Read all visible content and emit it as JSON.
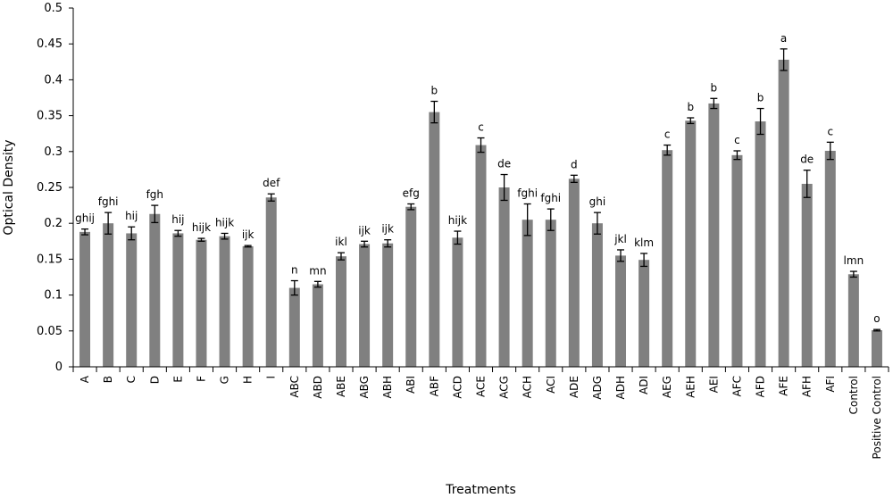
{
  "chart_data": {
    "type": "bar",
    "title": "",
    "xlabel": "Treatments",
    "ylabel": "Optical Density",
    "ylim": [
      0,
      0.5
    ],
    "yticks": [
      "0",
      "0.05",
      "0.1",
      "0.15",
      "0.2",
      "0.25",
      "0.3",
      "0.35",
      "0.4",
      "0.45",
      "0.5"
    ],
    "grid": false,
    "legend": "none",
    "bar_color": "#808080",
    "categories": [
      "A",
      "B",
      "C",
      "D",
      "E",
      "F",
      "G",
      "H",
      "I",
      "ABC",
      "ABD",
      "ABE",
      "ABG",
      "ABH",
      "ABI",
      "ABF",
      "ACD",
      "ACE",
      "ACG",
      "ACH",
      "ACI",
      "ADE",
      "ADG",
      "ADH",
      "ADI",
      "AEG",
      "AEH",
      "AEI",
      "AFC",
      "AFD",
      "AFE",
      "AFH",
      "AFI",
      "Control",
      "Positive Control"
    ],
    "values": [
      0.188,
      0.2,
      0.186,
      0.213,
      0.186,
      0.177,
      0.182,
      0.168,
      0.236,
      0.11,
      0.115,
      0.154,
      0.171,
      0.172,
      0.223,
      0.355,
      0.18,
      0.309,
      0.25,
      0.205,
      0.205,
      0.262,
      0.2,
      0.155,
      0.149,
      0.302,
      0.343,
      0.367,
      0.295,
      0.342,
      0.428,
      0.255,
      0.301,
      0.129,
      0.051
    ],
    "errors": [
      0.004,
      0.015,
      0.009,
      0.012,
      0.004,
      0.002,
      0.004,
      0.001,
      0.005,
      0.01,
      0.004,
      0.005,
      0.004,
      0.005,
      0.004,
      0.015,
      0.009,
      0.01,
      0.018,
      0.022,
      0.015,
      0.005,
      0.015,
      0.008,
      0.009,
      0.007,
      0.004,
      0.007,
      0.006,
      0.018,
      0.015,
      0.019,
      0.012,
      0.004,
      0.001
    ],
    "significance": [
      "ghij",
      "fghi",
      "hij",
      "fgh",
      "hij",
      "hijk",
      "hijk",
      "ijk",
      "def",
      "n",
      "mn",
      "ikl",
      "ijk",
      "ijk",
      "efg",
      "b",
      "hijk",
      "c",
      "de",
      "fghi",
      "fghi",
      "d",
      "ghi",
      "jkl",
      "klm",
      "c",
      "b",
      "b",
      "c",
      "b",
      "a",
      "de",
      "c",
      "lmn",
      "o"
    ]
  }
}
